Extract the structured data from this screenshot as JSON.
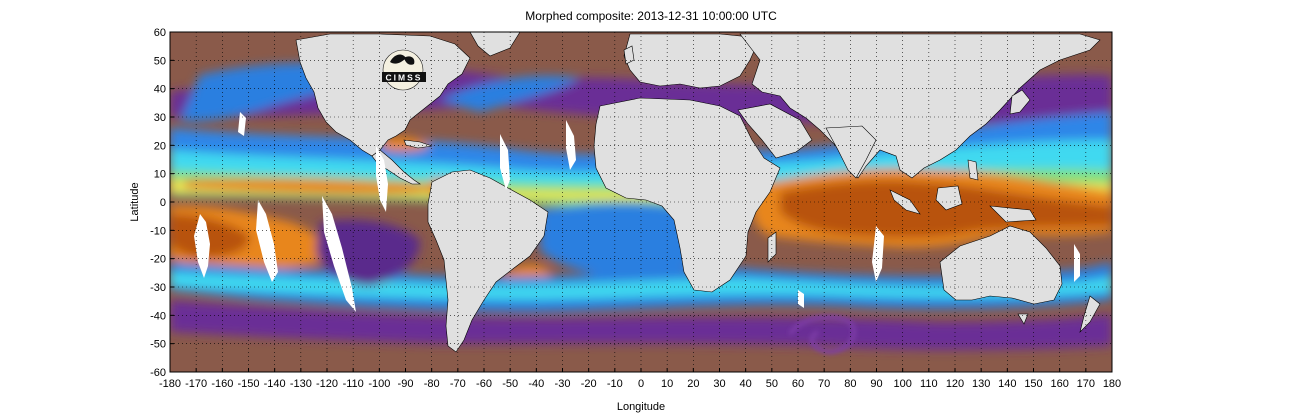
{
  "title": "Morphed composite: 2013-12-31 10:00:00 UTC",
  "xlabel": "Longitude",
  "ylabel": "Latitude",
  "xlim": [
    -180,
    180
  ],
  "ylim": [
    -60,
    60
  ],
  "x_ticks": [
    -180,
    -170,
    -160,
    -150,
    -140,
    -130,
    -120,
    -110,
    -100,
    -90,
    -80,
    -70,
    -60,
    -50,
    -40,
    -30,
    -20,
    -10,
    0,
    10,
    20,
    30,
    40,
    50,
    60,
    70,
    80,
    90,
    100,
    110,
    120,
    130,
    140,
    150,
    160,
    170,
    180
  ],
  "y_ticks": [
    60,
    50,
    40,
    30,
    20,
    10,
    0,
    -10,
    -20,
    -30,
    -40,
    -50,
    -60
  ],
  "grid": true,
  "logo_text": "CIMSS",
  "colors": {
    "land": "#e0e0e0",
    "dry_brown": "#8a5a4a",
    "deep_purple": "#5a2c8c",
    "violet": "#7e3ea8",
    "blue": "#2a7fe0",
    "cyan": "#3fd9f0",
    "green": "#7fe07f",
    "yellow": "#f2e24a",
    "orange": "#e8861e",
    "dark_orange": "#b8520c",
    "no_data": "#ffffff"
  }
}
